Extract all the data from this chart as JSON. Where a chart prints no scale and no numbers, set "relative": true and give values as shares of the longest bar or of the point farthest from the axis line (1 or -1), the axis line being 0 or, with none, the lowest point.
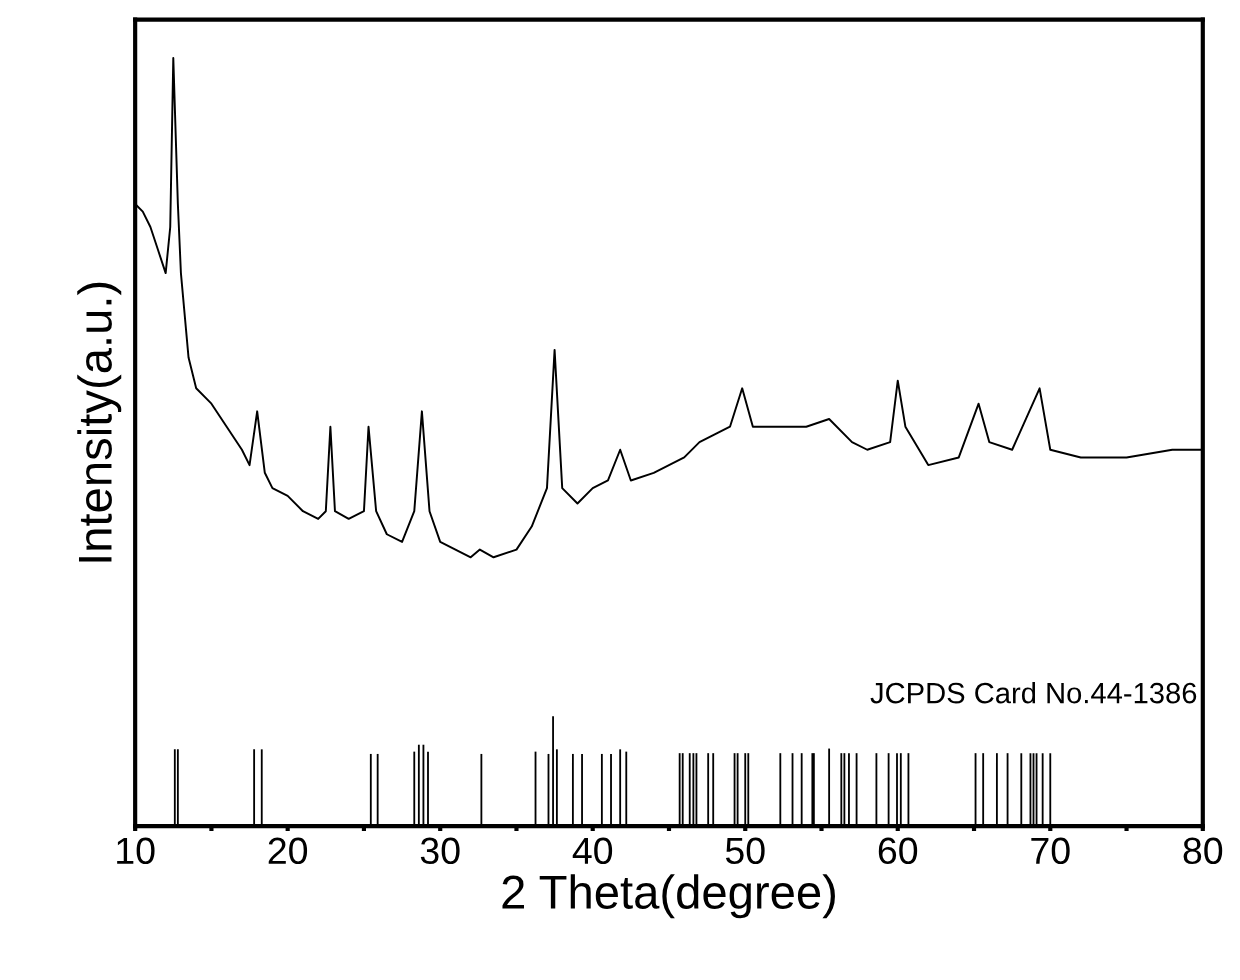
{
  "chart_data": {
    "type": "line",
    "relative": true,
    "xlabel": "2 Theta(degree)",
    "ylabel": "Intensity(a.u.)",
    "xlim": [
      10,
      80
    ],
    "xticks": [
      10,
      {
        "value": 15,
        "label": null
      },
      20,
      {
        "value": 25,
        "label": null
      },
      30,
      {
        "value": 35,
        "label": null
      },
      40,
      {
        "value": 45,
        "label": null
      },
      50,
      {
        "value": 55,
        "label": null
      },
      60,
      {
        "value": 65,
        "label": null
      },
      70,
      {
        "value": 75,
        "label": null
      },
      80
    ],
    "tick_labels": "x",
    "grid": false,
    "legend": false,
    "annotations": [
      "JCPDS Card No.44-1386"
    ],
    "series": [
      {
        "color": "#000000",
        "x": [
          10,
          10.5,
          11,
          11.5,
          12,
          12.3,
          12.5,
          12.8,
          13,
          13.5,
          14,
          15,
          16,
          17,
          17.5,
          18,
          18.5,
          19,
          20,
          21,
          22,
          22.5,
          22.8,
          23.1,
          24,
          25,
          25.3,
          25.8,
          26.5,
          27.5,
          28.3,
          28.8,
          29.3,
          30,
          31,
          32,
          32.6,
          33.5,
          35,
          36,
          37,
          37.5,
          38,
          39,
          40,
          41,
          41.8,
          42.5,
          44,
          45,
          46,
          47,
          48,
          49,
          49.8,
          50.5,
          52,
          54,
          55.5,
          57,
          58,
          59.5,
          60,
          60.5,
          62,
          64,
          65.3,
          66,
          67.5,
          69.3,
          70,
          72,
          75,
          78,
          80
        ],
        "values": [
          0.81,
          0.8,
          0.78,
          0.75,
          0.72,
          0.78,
          1.0,
          0.81,
          0.72,
          0.61,
          0.57,
          0.55,
          0.52,
          0.49,
          0.47,
          0.54,
          0.46,
          0.44,
          0.43,
          0.41,
          0.4,
          0.41,
          0.52,
          0.41,
          0.4,
          0.41,
          0.52,
          0.41,
          0.38,
          0.37,
          0.41,
          0.54,
          0.41,
          0.37,
          0.36,
          0.35,
          0.36,
          0.35,
          0.36,
          0.39,
          0.44,
          0.62,
          0.44,
          0.42,
          0.44,
          0.45,
          0.49,
          0.45,
          0.46,
          0.47,
          0.48,
          0.5,
          0.51,
          0.52,
          0.57,
          0.52,
          0.52,
          0.52,
          0.53,
          0.5,
          0.49,
          0.5,
          0.58,
          0.52,
          0.47,
          0.48,
          0.55,
          0.5,
          0.49,
          0.57,
          0.49,
          0.48,
          0.48,
          0.49,
          0.49
        ]
      },
      {
        "type": "bar",
        "color": "#000000",
        "x": [
          12.6,
          12.8,
          17.8,
          18.3,
          25.45,
          25.9,
          28.3,
          28.6,
          28.9,
          29.2,
          32.7,
          36.25,
          37.1,
          37.4,
          37.65,
          38.7,
          39.3,
          40.6,
          41.2,
          41.8,
          42.2,
          45.7,
          45.9,
          46.36,
          46.6,
          46.8,
          47.57,
          47.9,
          49.3,
          49.5,
          50.0,
          50.2,
          52.3,
          53.1,
          53.7,
          54.4,
          54.5,
          55.5,
          56.3,
          56.5,
          56.8,
          57.3,
          58.6,
          59.4,
          59.95,
          60.2,
          60.7,
          65.1,
          65.6,
          66.5,
          67.2,
          68.1,
          68.7,
          68.9,
          69.1,
          69.5,
          70.0
        ],
        "values": [
          0.1,
          0.1,
          0.1,
          0.1,
          0.094,
          0.094,
          0.097,
          0.106,
          0.106,
          0.097,
          0.094,
          0.097,
          0.094,
          0.143,
          0.1,
          0.094,
          0.094,
          0.094,
          0.094,
          0.1,
          0.097,
          0.095,
          0.095,
          0.095,
          0.095,
          0.095,
          0.095,
          0.095,
          0.095,
          0.095,
          0.095,
          0.095,
          0.095,
          0.095,
          0.095,
          0.095,
          0.095,
          0.101,
          0.095,
          0.095,
          0.095,
          0.095,
          0.095,
          0.095,
          0.095,
          0.095,
          0.095,
          0.095,
          0.095,
          0.095,
          0.095,
          0.095,
          0.095,
          0.095,
          0.095,
          0.095,
          0.095
        ]
      }
    ]
  }
}
